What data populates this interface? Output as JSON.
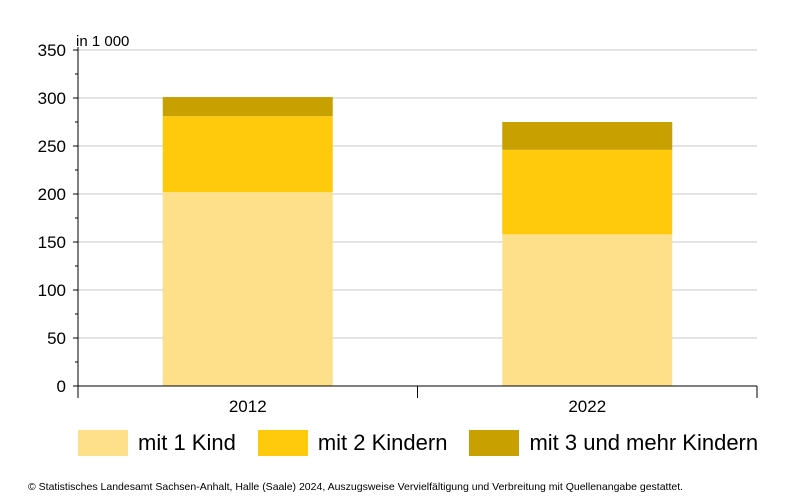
{
  "chart_data": {
    "type": "bar",
    "stacked": true,
    "unit_label": "in 1 000",
    "categories": [
      "2012",
      "2022"
    ],
    "series": [
      {
        "name": "mit 1 Kind",
        "color": "#FDE089",
        "values": [
          202,
          158
        ]
      },
      {
        "name": "mit 2 Kindern",
        "color": "#FECA0B",
        "values": [
          79,
          88
        ]
      },
      {
        "name": "mit 3 und mehr Kindern",
        "color": "#C8A000",
        "values": [
          20,
          29
        ]
      }
    ],
    "ylim": [
      0,
      350
    ],
    "yticks": [
      0,
      50,
      100,
      150,
      200,
      250,
      300,
      350
    ],
    "grid": true,
    "legend_position": "bottom"
  },
  "footer": {
    "source": "© Statistisches Landesamt Sachsen-Anhalt, Halle (Saale) 2024, Auszugsweise Vervielfältigung und Verbreitung mit Quellenangabe gestattet."
  }
}
